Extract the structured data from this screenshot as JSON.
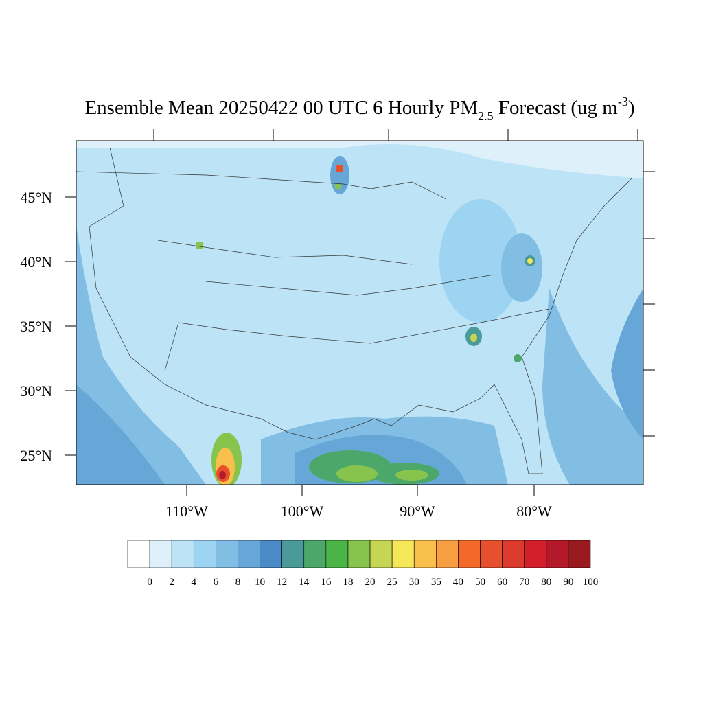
{
  "title": {
    "main": "Ensemble Mean 20250422 00 UTC 6 Hourly PM",
    "subscript": "2.5",
    "middle": " Forecast (ug m",
    "superscript": "-3",
    "end": ")"
  },
  "lat_labels": [
    "45°N",
    "40°N",
    "35°N",
    "30°N",
    "25°N"
  ],
  "lon_labels": [
    "110°W",
    "100°W",
    "90°W",
    "80°W"
  ],
  "colorbar": {
    "colors": [
      "#ffffff",
      "#def0fa",
      "#bde3f6",
      "#9dd4f2",
      "#82bde4",
      "#67a7d8",
      "#4a8ac7",
      "#4a9a9a",
      "#4ca86a",
      "#4bb447",
      "#86c44d",
      "#c4d654",
      "#f6e65a",
      "#f8c04a",
      "#f79d42",
      "#f2692a",
      "#e6502d",
      "#dc3a2c",
      "#d21f2b",
      "#b4192a",
      "#9a1b1f"
    ],
    "labels": [
      "0",
      "2",
      "4",
      "6",
      "8",
      "10",
      "12",
      "14",
      "16",
      "18",
      "20",
      "25",
      "30",
      "35",
      "40",
      "50",
      "60",
      "70",
      "80",
      "90",
      "100"
    ]
  }
}
